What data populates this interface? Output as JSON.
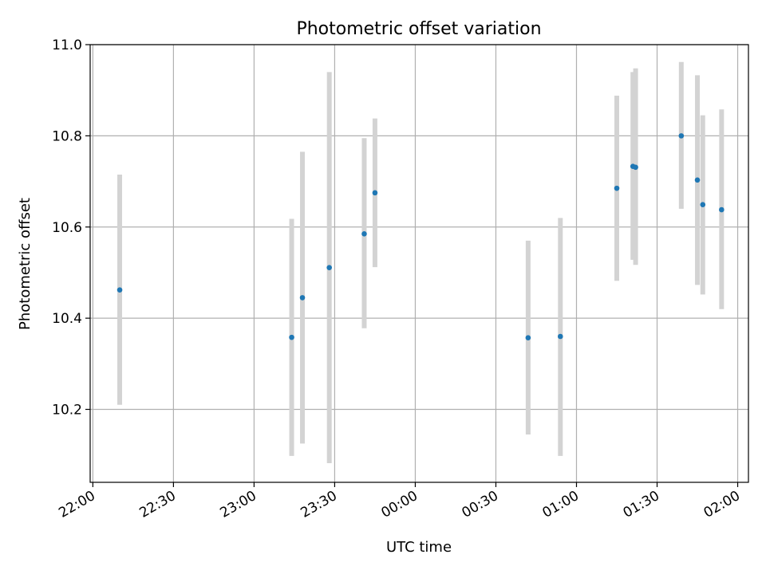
{
  "chart_data": {
    "type": "scatter",
    "title": "Photometric offset variation",
    "xlabel": "UTC time",
    "ylabel": "Photometric offset",
    "x_unit": "UTC time (HH:MM)",
    "xlim": [
      "21:59",
      "02:04"
    ],
    "ylim": [
      10.04,
      11.0
    ],
    "x_ticks": [
      "22:00",
      "22:30",
      "23:00",
      "23:30",
      "00:00",
      "00:30",
      "01:00",
      "01:30",
      "02:00"
    ],
    "y_ticks": [
      "10.2",
      "10.4",
      "10.6",
      "10.8",
      "11.0"
    ],
    "grid": true,
    "colors": {
      "point": "#1f77b4",
      "error_bar": "#d3d3d3",
      "grid": "#b0b0b0"
    },
    "points": [
      {
        "x": "22:10",
        "y": 10.462,
        "y_low": 10.21,
        "y_high": 10.715
      },
      {
        "x": "23:14",
        "y": 10.358,
        "y_low": 10.098,
        "y_high": 10.618
      },
      {
        "x": "23:18",
        "y": 10.445,
        "y_low": 10.125,
        "y_high": 10.765
      },
      {
        "x": "23:28",
        "y": 10.511,
        "y_low": 10.082,
        "y_high": 10.94
      },
      {
        "x": "23:41",
        "y": 10.585,
        "y_low": 10.378,
        "y_high": 10.795
      },
      {
        "x": "23:45",
        "y": 10.675,
        "y_low": 10.512,
        "y_high": 10.838
      },
      {
        "x": "00:42",
        "y": 10.357,
        "y_low": 10.145,
        "y_high": 10.57
      },
      {
        "x": "00:54",
        "y": 10.36,
        "y_low": 10.098,
        "y_high": 10.62
      },
      {
        "x": "01:15",
        "y": 10.685,
        "y_low": 10.482,
        "y_high": 10.888
      },
      {
        "x": "01:21",
        "y": 10.733,
        "y_low": 10.528,
        "y_high": 10.94
      },
      {
        "x": "01:22",
        "y": 10.731,
        "y_low": 10.517,
        "y_high": 10.948
      },
      {
        "x": "01:39",
        "y": 10.8,
        "y_low": 10.64,
        "y_high": 10.962
      },
      {
        "x": "01:45",
        "y": 10.703,
        "y_low": 10.473,
        "y_high": 10.933
      },
      {
        "x": "01:47",
        "y": 10.649,
        "y_low": 10.452,
        "y_high": 10.845
      },
      {
        "x": "01:54",
        "y": 10.638,
        "y_low": 10.42,
        "y_high": 10.858
      }
    ]
  }
}
